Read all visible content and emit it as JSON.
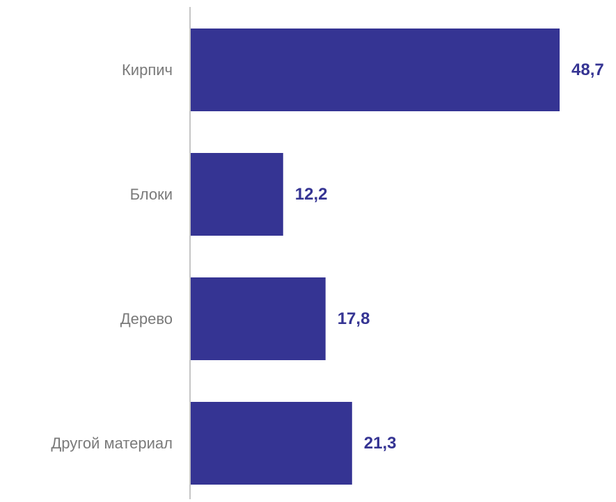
{
  "chart_data": {
    "type": "bar",
    "orientation": "horizontal",
    "categories": [
      "Кирпич",
      "Блоки",
      "Дерево",
      "Другой материал"
    ],
    "values": [
      48.7,
      12.2,
      17.8,
      21.3
    ],
    "value_labels": [
      "48,7",
      "12,2",
      "17,8",
      "21,3"
    ],
    "title": "",
    "xlabel": "",
    "ylabel": "",
    "xlim": [
      0,
      48.7
    ],
    "grid": false,
    "legend": "none",
    "colors": {
      "bar": "#353493",
      "value_label": "#353493",
      "category_label": "#7a7a7a",
      "axis": "#8c8c8c"
    }
  }
}
